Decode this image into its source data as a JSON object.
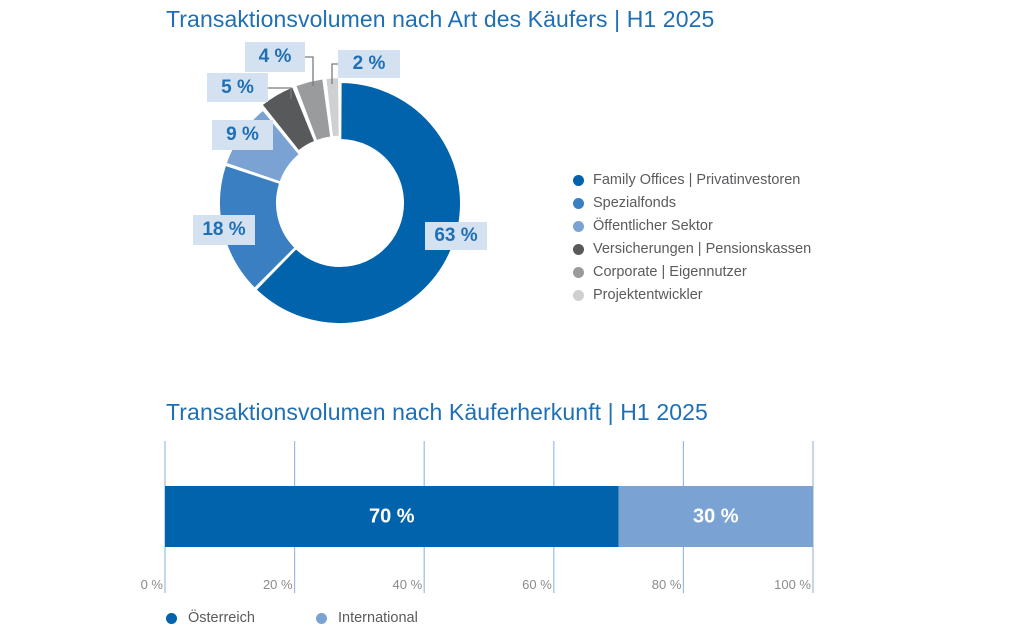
{
  "chart_data": [
    {
      "type": "pie",
      "variant": "donut",
      "title": "Transaktionsvolumen nach Art des Käufers | H1 2025",
      "unit": "%",
      "slices": [
        {
          "name": "Family Offices | Privatinvestoren",
          "value": 63,
          "label": "63 %",
          "color": "#0063ab"
        },
        {
          "name": "Spezialfonds",
          "value": 18,
          "label": "18 %",
          "color": "#3a7fc1"
        },
        {
          "name": "Öffentlicher Sektor",
          "value": 9,
          "label": "9 %",
          "color": "#7aa3d4"
        },
        {
          "name": "Versicherungen | Pensionskassen",
          "value": 5,
          "label": "5 %",
          "color": "#58595b"
        },
        {
          "name": "Corporate | Eigennutzer",
          "value": 4,
          "label": "4 %",
          "color": "#9a9b9d"
        },
        {
          "name": "Projektentwickler",
          "value": 2,
          "label": "2 %",
          "color": "#cfd0d2"
        }
      ],
      "legend_position": "right"
    },
    {
      "type": "bar",
      "orientation": "horizontal",
      "stacked": true,
      "title": "Transaktionsvolumen nach Käuferherkunft | H1 2025",
      "categories": [
        "H1 2025"
      ],
      "series": [
        {
          "name": "Österreich",
          "values": [
            70
          ],
          "label": "70 %",
          "color": "#0063ab"
        },
        {
          "name": "International",
          "values": [
            30
          ],
          "label": "30 %",
          "color": "#7aa3d4"
        }
      ],
      "xlim": [
        0,
        100
      ],
      "xticks": [
        0,
        20,
        40,
        60,
        80,
        100
      ],
      "xtick_labels": [
        "0 %",
        "20 %",
        "40 %",
        "60 %",
        "80 %",
        "100 %"
      ],
      "grid": true,
      "legend_position": "bottom-left"
    }
  ],
  "colors": {
    "title": "#1f6fb5",
    "label_box": "#d4e1f1",
    "gridline": "#9bbbe0",
    "legend_text": "#5a5b5d",
    "tick_text": "#8a8b8d"
  }
}
